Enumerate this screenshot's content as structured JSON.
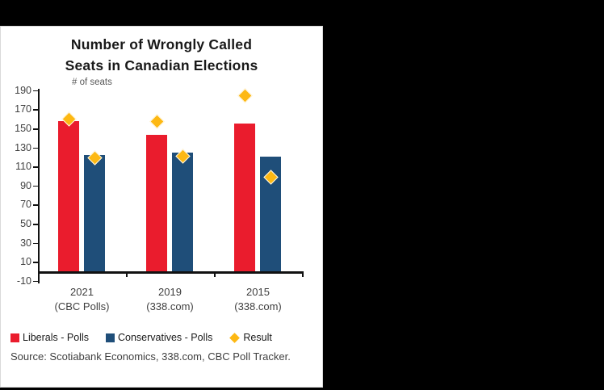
{
  "window": {
    "background_color": "#000000",
    "panel_color": "#ffffff"
  },
  "chart": {
    "title_line1": "Number of Wrongly Called",
    "title_line2": "Seats in Canadian Elections",
    "axis_note": "# of seats",
    "source": "Source: Scotiabank Economics, 338.com, CBC Poll Tracker.",
    "colors": {
      "liberals": "#ea1c2d",
      "conservatives": "#1f4e79",
      "result": "#fdb813",
      "axis": "#111111"
    },
    "legend": [
      {
        "label": "Liberals - Polls",
        "shape": "square",
        "color": "#ea1c2d"
      },
      {
        "label": "Conservatives - Polls",
        "shape": "square",
        "color": "#1f4e79"
      },
      {
        "label": "Result",
        "shape": "diamond",
        "color": "#fdb813"
      }
    ]
  },
  "chart_data": {
    "type": "bar",
    "title": "Number of Wrongly Called Seats in Canadian Elections",
    "xlabel": "",
    "ylabel": "# of seats",
    "ylim": [
      -10,
      190
    ],
    "ytick_step": 20,
    "yticks": [
      "190",
      "170",
      "150",
      "130",
      "110",
      "90",
      "70",
      "50",
      "30",
      "10",
      "-10"
    ],
    "grid": false,
    "legend_position": "bottom",
    "categories": [
      {
        "line1": "2021",
        "line2": "(CBC Polls)",
        "label": "2021 (CBC Polls)"
      },
      {
        "line1": "2019",
        "line2": "(338.com)",
        "label": "2019 (338.com)"
      },
      {
        "line1": "2015",
        "line2": "(338.com)",
        "label": "2015 (338.com)"
      }
    ],
    "series": [
      {
        "name": "Liberals - Polls",
        "type": "bar",
        "color": "#ea1c2d",
        "values": [
          158,
          143,
          155
        ]
      },
      {
        "name": "Conservatives - Polls",
        "type": "bar",
        "color": "#1f4e79",
        "values": [
          122,
          125,
          120
        ]
      },
      {
        "name": "Result",
        "type": "point-diamond",
        "color": "#fdb813",
        "values_over_liberals": [
          160,
          157,
          184
        ],
        "values_over_conservatives": [
          119,
          121,
          99
        ]
      }
    ]
  }
}
